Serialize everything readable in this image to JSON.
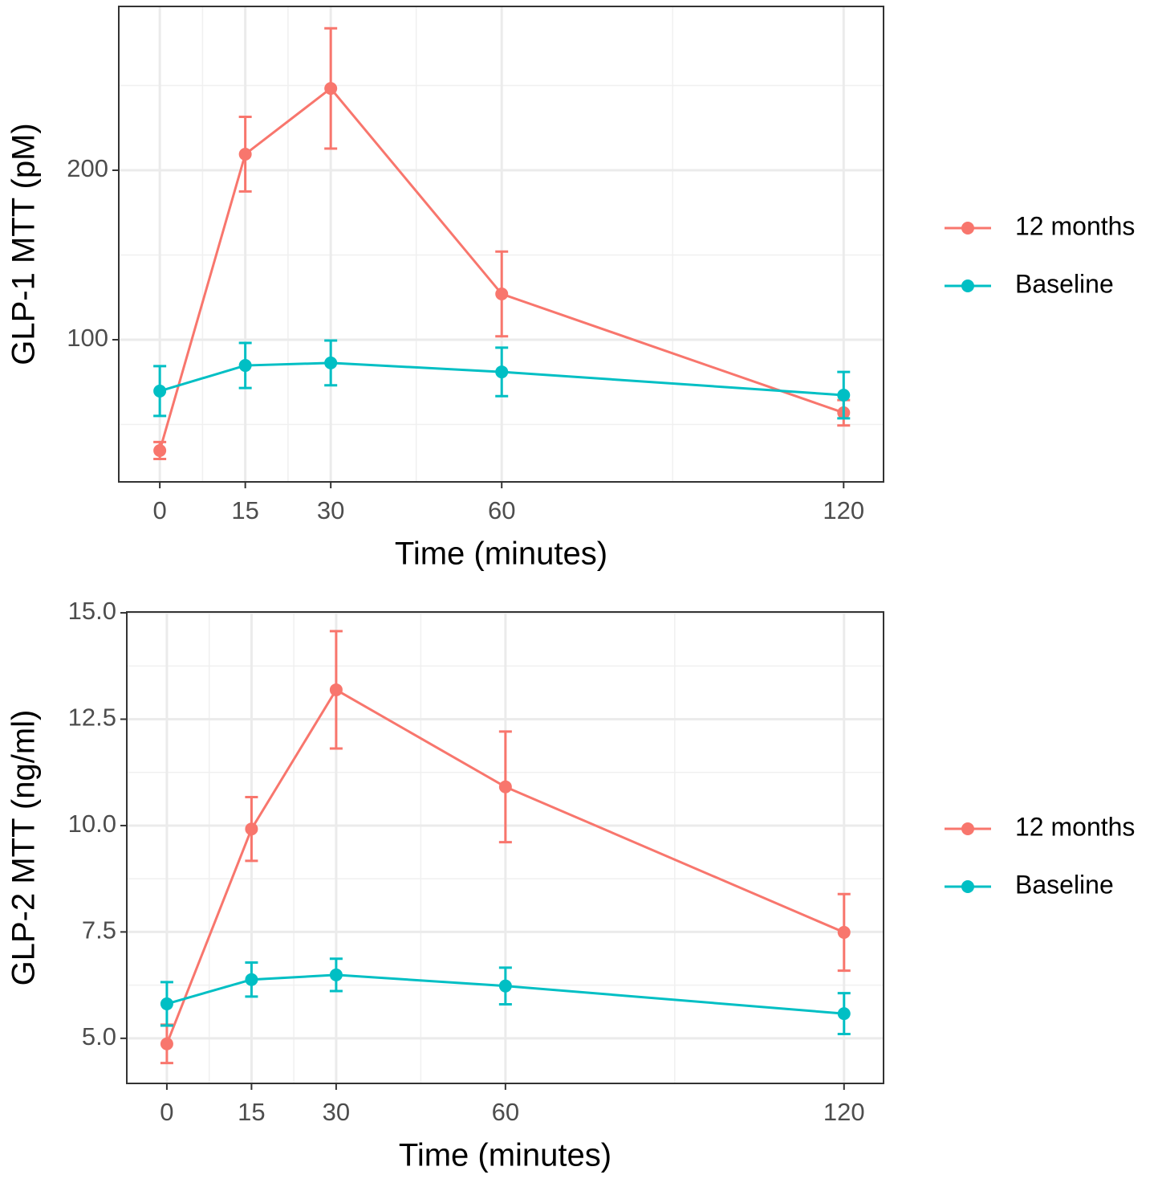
{
  "chart_data": [
    {
      "type": "line",
      "x": [
        0,
        15,
        30,
        60,
        120
      ],
      "x_label": "Time (minutes)",
      "y_label": "GLP-1 MTT (pM)",
      "xlim": [
        -7.2,
        127
      ],
      "xticks": [
        0,
        15,
        30,
        60,
        120
      ],
      "ylim": [
        16.1,
        296.7
      ],
      "yticks": [
        100,
        200
      ],
      "grid": true,
      "legend": "right",
      "series": [
        {
          "name": "12 months",
          "color": "#F8766D",
          "values": [
            34.6,
            209.5,
            248.3,
            127,
            56.9
          ],
          "errors": [
            5,
            22,
            35.5,
            25,
            7.5
          ]
        },
        {
          "name": "Baseline",
          "color": "#00BFC4",
          "values": [
            69.7,
            84.8,
            86.3,
            81,
            67.3
          ],
          "errors": [
            14.7,
            13.3,
            13.2,
            14.3,
            13.7
          ]
        }
      ]
    },
    {
      "type": "line",
      "x": [
        0,
        15,
        30,
        60,
        120
      ],
      "x_label": "Time (minutes)",
      "y_label": "GLP-2 MTT (ng/ml)",
      "xlim": [
        -7.1,
        127
      ],
      "xticks": [
        0,
        15,
        30,
        60,
        120
      ],
      "ylim": [
        3.94,
        15.02
      ],
      "yticks": [
        {
          "value": 5,
          "label": "5.0"
        },
        7.5,
        {
          "value": 10,
          "label": "10.0"
        },
        12.5,
        {
          "value": 15,
          "label": "15.0"
        }
      ],
      "grid": true,
      "legend": "right",
      "series": [
        {
          "name": "12 months",
          "color": "#F8766D",
          "values": [
            4.87,
            9.92,
            13.19,
            10.91,
            7.49
          ],
          "errors": [
            0.45,
            0.75,
            1.38,
            1.3,
            0.9
          ]
        },
        {
          "name": "Baseline",
          "color": "#00BFC4",
          "values": [
            5.81,
            6.38,
            6.49,
            6.23,
            5.58
          ],
          "errors": [
            0.51,
            0.4,
            0.38,
            0.43,
            0.48
          ]
        }
      ]
    }
  ]
}
